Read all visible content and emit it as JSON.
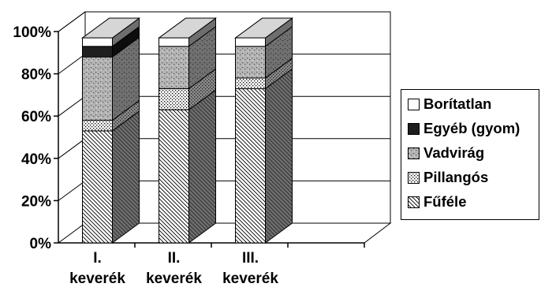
{
  "chart_data": {
    "type": "bar",
    "stacked": true,
    "three_d": true,
    "categories": [
      [
        "I.",
        "keverék"
      ],
      [
        "II.",
        "keverék"
      ],
      [
        "III.",
        "keverék"
      ]
    ],
    "series": [
      {
        "name": "Fűféle",
        "values": [
          53,
          63,
          73
        ],
        "pattern": "diagonal-hatch"
      },
      {
        "name": "Pillangós",
        "values": [
          5,
          10,
          5
        ],
        "pattern": "dots"
      },
      {
        "name": "Vadvirág",
        "values": [
          30,
          20,
          15
        ],
        "pattern": "grey-speckle"
      },
      {
        "name": "Egyéb (gyom)",
        "values": [
          5,
          0,
          0
        ],
        "pattern": "dark"
      },
      {
        "name": "Borítatlan",
        "values": [
          4,
          4,
          4
        ],
        "pattern": "white"
      }
    ],
    "y_ticks": [
      "0%",
      "20%",
      "40%",
      "60%",
      "80%",
      "100%"
    ],
    "ylim": [
      0,
      100
    ],
    "legend_position": "right",
    "legend_order": [
      "Borítatlan",
      "Egyéb (gyom)",
      "Vadvirág",
      "Pillangós",
      "Fűféle"
    ],
    "grid": true
  }
}
